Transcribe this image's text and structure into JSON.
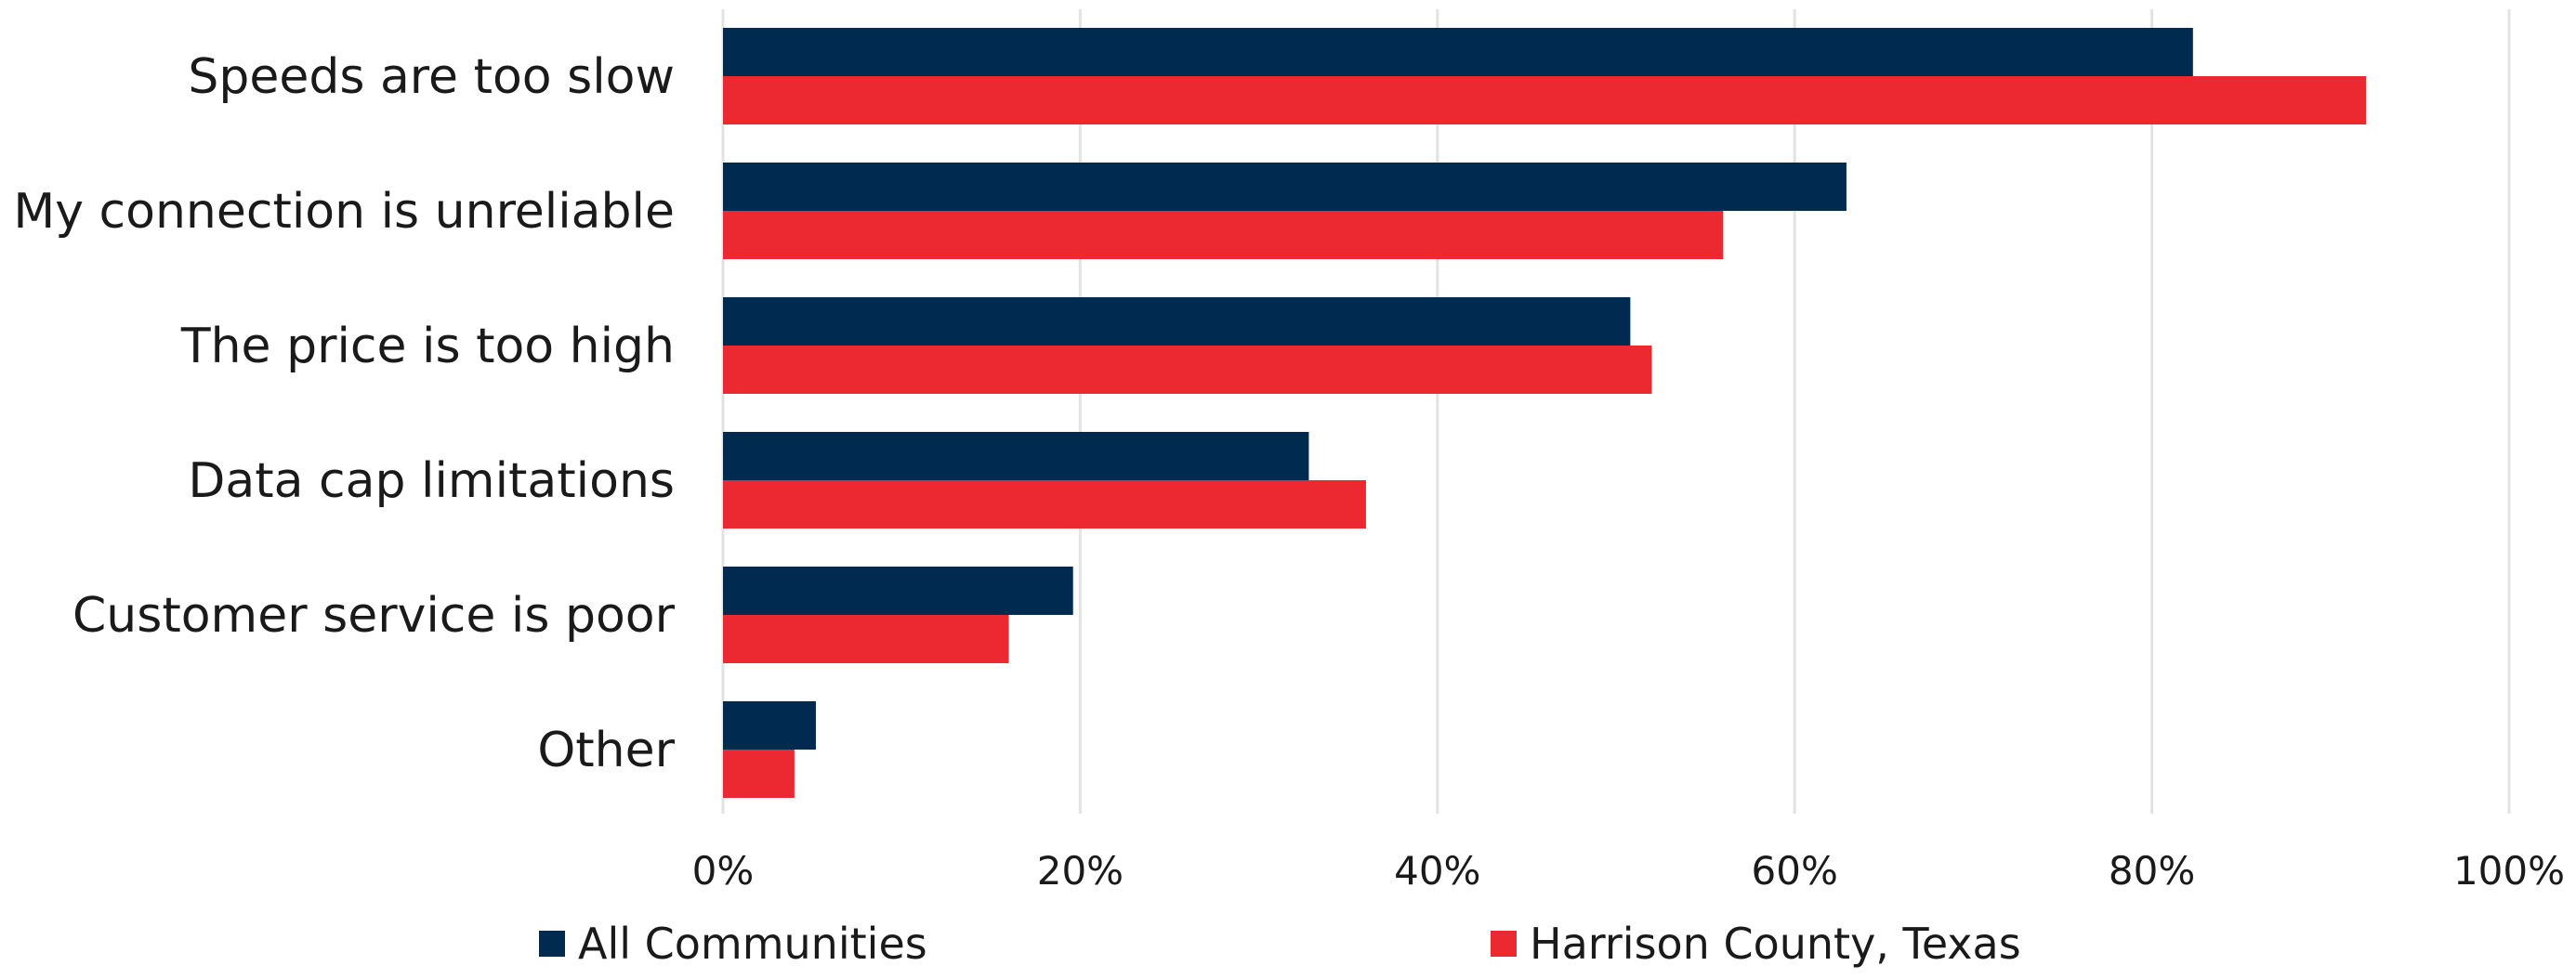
{
  "chart_data": {
    "type": "bar",
    "orientation": "horizontal",
    "categories": [
      "Speeds are too slow",
      "My connection is unreliable",
      "The price is too high",
      "Data cap limitations",
      "Customer service is poor",
      "Other"
    ],
    "series": [
      {
        "name": "All Communities",
        "color": "#002a4f",
        "values": [
          82.3,
          62.9,
          50.8,
          32.8,
          19.6,
          5.2
        ]
      },
      {
        "name": "Harrison County, Texas",
        "color": "#ec2830",
        "values": [
          92.0,
          56.0,
          52.0,
          36.0,
          16.0,
          4.0
        ]
      }
    ],
    "xlim": [
      0,
      100
    ],
    "xticks": [
      0,
      20,
      40,
      60,
      80,
      100
    ],
    "xtick_labels": [
      "0%",
      "20%",
      "40%",
      "60%",
      "80%",
      "100%"
    ],
    "title": "",
    "xlabel": "",
    "ylabel": "",
    "grid": "vertical",
    "legend_position": "bottom"
  }
}
